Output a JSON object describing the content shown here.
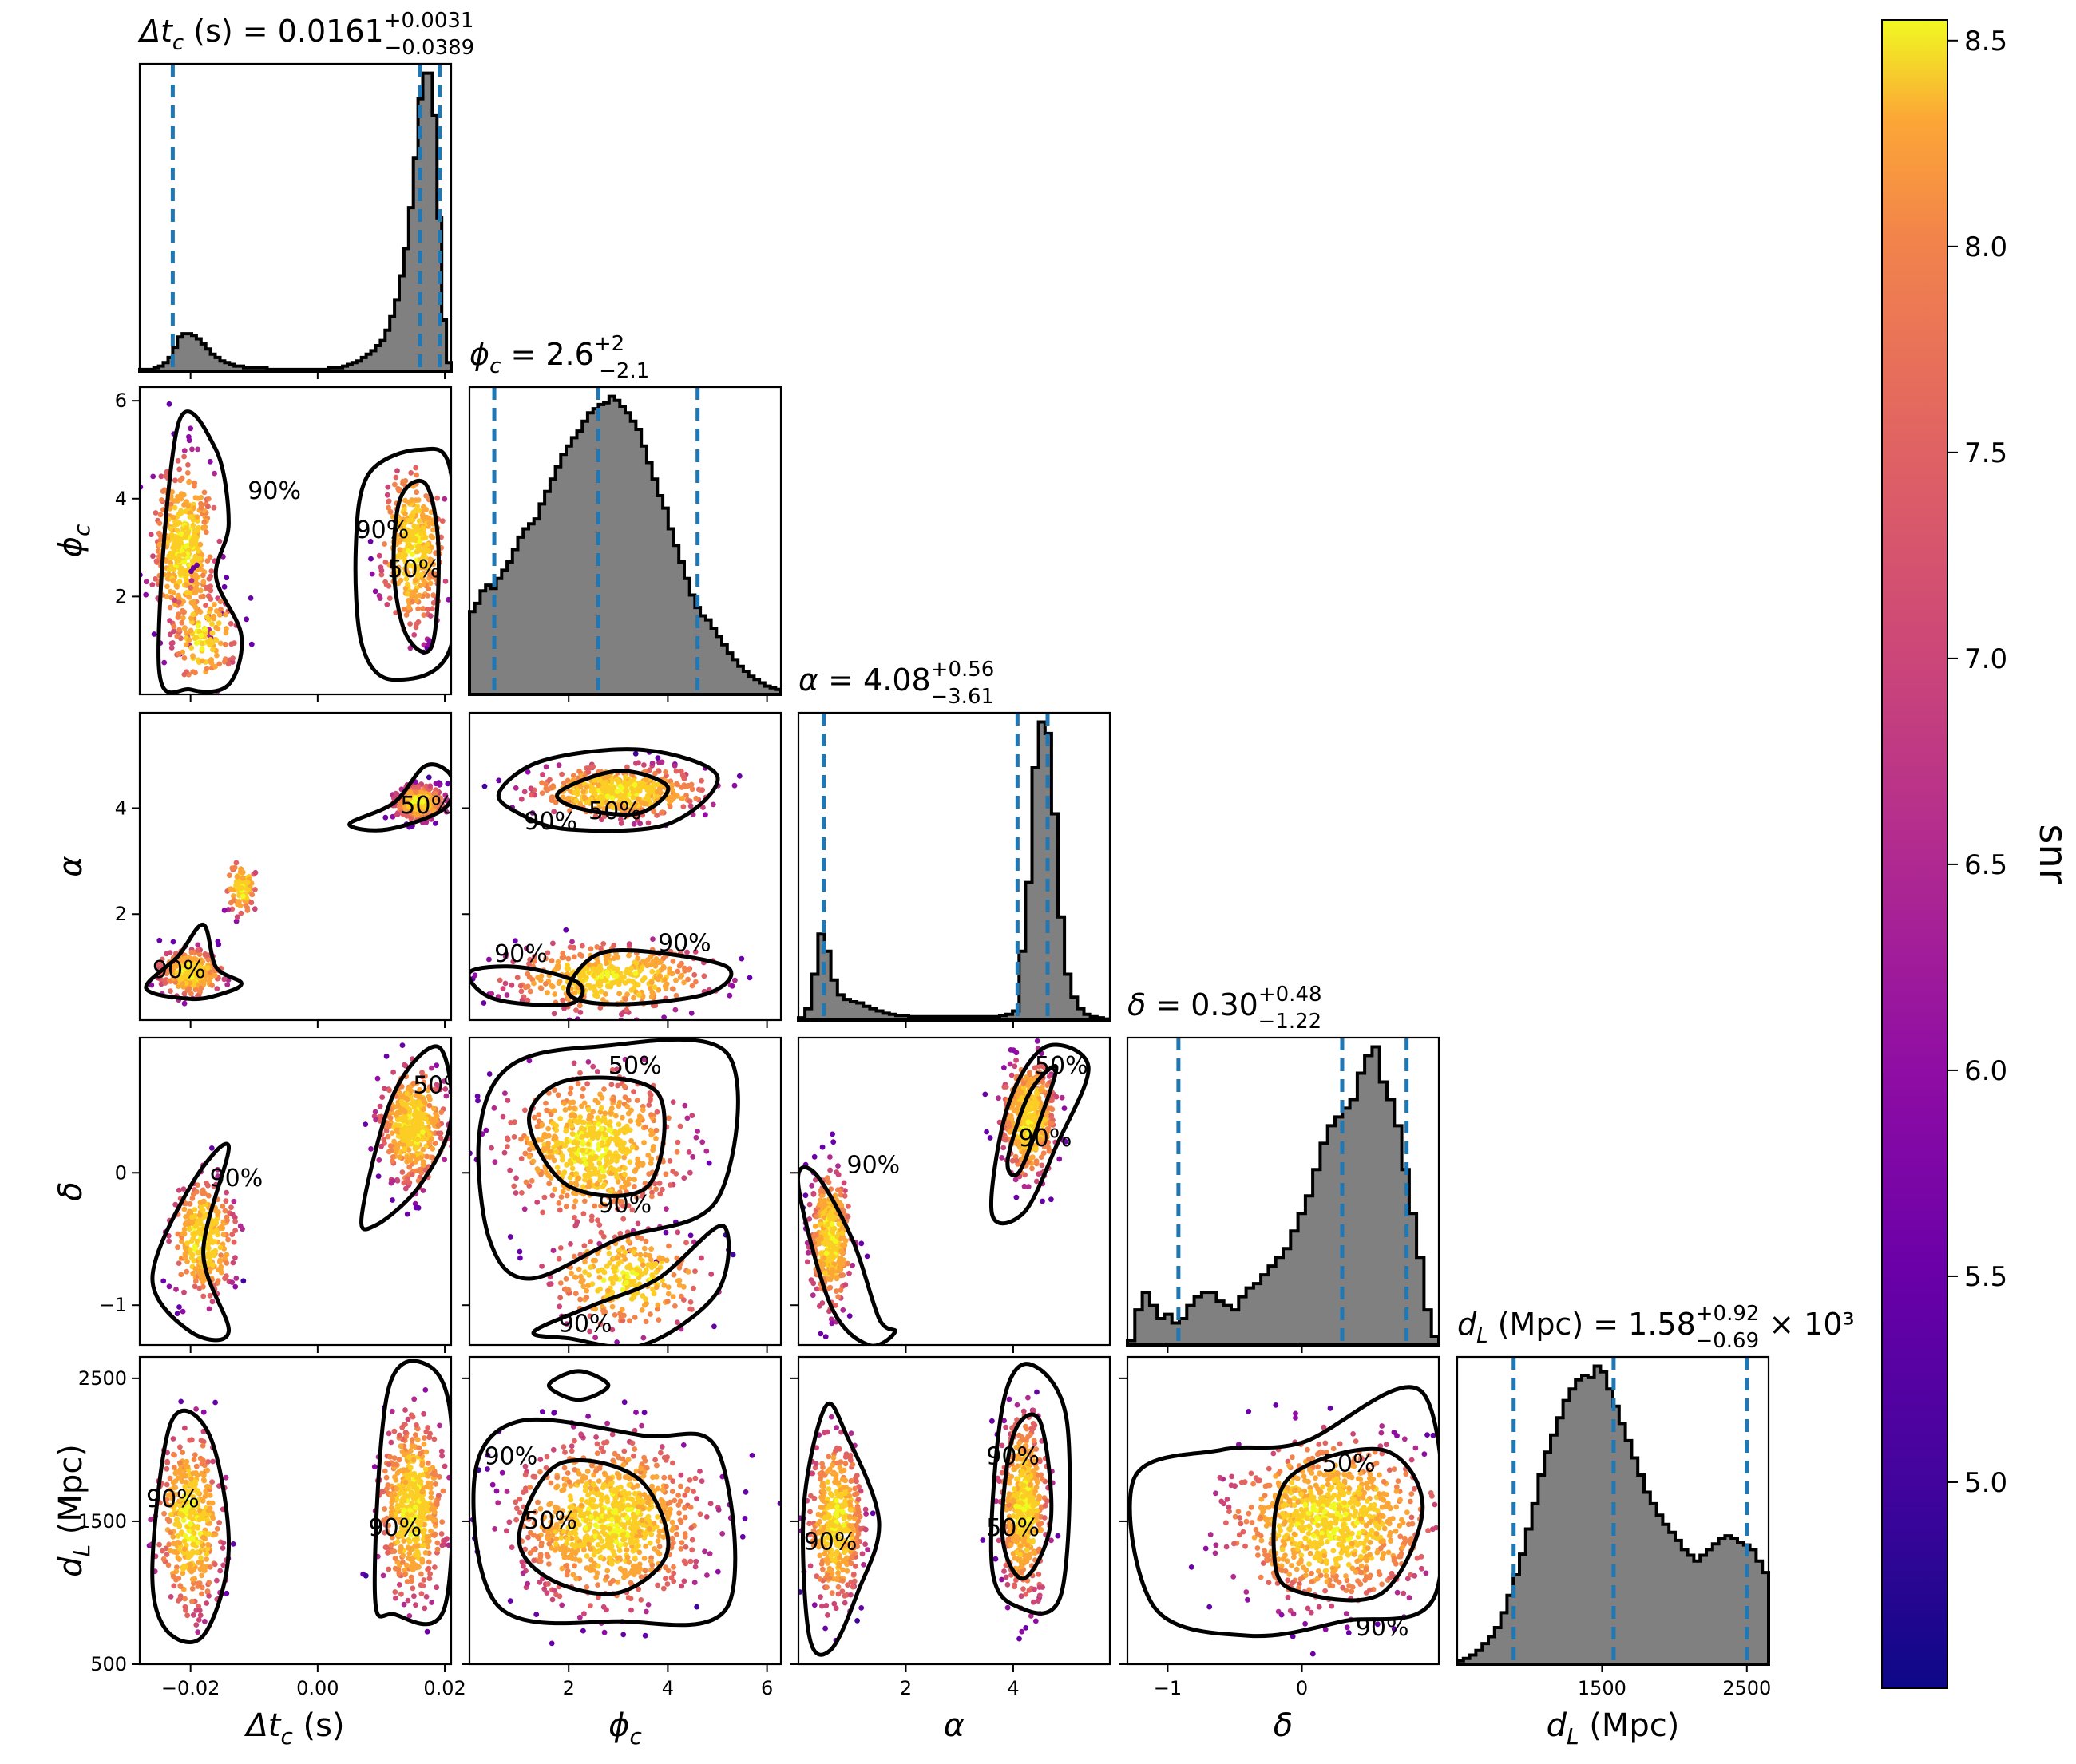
{
  "chart_data": {
    "type": "corner",
    "colorbar": {
      "label": "snr",
      "range": [
        4.5,
        8.55
      ],
      "ticks": [
        "5.0",
        "5.5",
        "6.0",
        "6.5",
        "7.0",
        "7.5",
        "8.0",
        "8.5"
      ],
      "colormap": "plasma"
    },
    "parameters": [
      {
        "key": "dtc",
        "range": [
          -0.028,
          0.021
        ],
        "ticks": [
          -0.02,
          0.0,
          0.02
        ],
        "tick_labels": [
          "−0.02",
          "0.00",
          "0.02"
        ],
        "median": 0.0161,
        "lo": -0.0228,
        "hi": 0.0192,
        "title_main": "Δt",
        "title_sub": "c",
        "title_rest": " (s) = 0.0161",
        "title_up": "+0.0031",
        "title_dn": "−0.0389",
        "label_main": "Δt",
        "label_sub": "c",
        "label_rest": " (s)",
        "hist": [
          1,
          1,
          1,
          2,
          3,
          5,
          8,
          14,
          20,
          22,
          22,
          21,
          19,
          16,
          13,
          10,
          8,
          6,
          5,
          4,
          3,
          3,
          2,
          2,
          2,
          2,
          2,
          1,
          1,
          1,
          1,
          1,
          1,
          1,
          1,
          1,
          1,
          1,
          1,
          1,
          2,
          2,
          2,
          3,
          4,
          5,
          6,
          8,
          10,
          12,
          15,
          18,
          24,
          32,
          42,
          56,
          72,
          96,
          125,
          160,
          175,
          175,
          150,
          90,
          30,
          5
        ]
      },
      {
        "key": "phi",
        "range": [
          0.0,
          6.28
        ],
        "ticks": [
          2,
          4,
          6
        ],
        "tick_labels": [
          "2",
          "4",
          "6"
        ],
        "median": 2.6,
        "lo": 0.5,
        "hi": 4.6,
        "title_main": "ϕ",
        "title_sub": "c",
        "title_rest": " = 2.6",
        "title_up": "+2",
        "title_dn": "−2.1",
        "label_main": "ϕ",
        "label_sub": "c",
        "label_rest": "",
        "hist": [
          100,
          110,
          125,
          132,
          128,
          140,
          150,
          160,
          175,
          190,
          200,
          206,
          212,
          230,
          245,
          260,
          275,
          290,
          300,
          310,
          318,
          330,
          340,
          345,
          350,
          352,
          360,
          355,
          348,
          340,
          330,
          320,
          300,
          280,
          260,
          240,
          225,
          200,
          180,
          160,
          140,
          120,
          105,
          95,
          90,
          80,
          70,
          60,
          50,
          42,
          34,
          28,
          22,
          18,
          14,
          10,
          8,
          6
        ]
      },
      {
        "key": "alpha",
        "range": [
          0.0,
          5.8
        ],
        "ticks": [
          2,
          4
        ],
        "tick_labels": [
          "2",
          "4"
        ],
        "median": 4.08,
        "lo": 0.47,
        "hi": 4.64,
        "title_main": "α",
        "title_sub": "",
        "title_rest": " = 4.08",
        "title_up": "+0.56",
        "title_dn": "−3.61",
        "label_main": "α",
        "label_sub": "",
        "label_rest": "",
        "hist": [
          2,
          10,
          40,
          75,
          60,
          35,
          22,
          18,
          16,
          15,
          12,
          10,
          8,
          6,
          5,
          4,
          4,
          3,
          3,
          3,
          3,
          3,
          3,
          3,
          3,
          3,
          3,
          3,
          3,
          3,
          3,
          4,
          5,
          8,
          60,
          120,
          220,
          260,
          250,
          180,
          90,
          40,
          20,
          10,
          5,
          3,
          2,
          1
        ]
      },
      {
        "key": "delta",
        "range": [
          -1.3,
          1.02
        ],
        "ticks": [
          -1,
          0
        ],
        "tick_labels": [
          "−1",
          "0"
        ],
        "median": 0.3,
        "lo": -0.92,
        "hi": 0.78,
        "title_main": "δ",
        "title_sub": "",
        "title_rest": " = 0.30",
        "title_up": "+0.48",
        "title_dn": "−1.22",
        "label_main": "δ",
        "label_sub": "",
        "label_rest": "",
        "hist": [
          5,
          40,
          60,
          45,
          30,
          35,
          25,
          30,
          45,
          55,
          60,
          60,
          50,
          45,
          40,
          55,
          65,
          70,
          80,
          90,
          100,
          110,
          130,
          150,
          170,
          200,
          230,
          250,
          260,
          270,
          280,
          310,
          330,
          340,
          300,
          280,
          250,
          200,
          150,
          100,
          40,
          10
        ]
      },
      {
        "key": "dL",
        "range": [
          500,
          2650
        ],
        "ticks": [
          1500,
          2500
        ],
        "tick_labels": [
          "1500",
          "2500"
        ],
        "tick_labels_y": [
          "500",
          "1500",
          "2500"
        ],
        "ticks_y": [
          500,
          1500,
          2500
        ],
        "median": 1580,
        "lo": 890,
        "hi": 2500,
        "title_main": "d",
        "title_sub": "L",
        "title_rest": " (Mpc) = 1.58",
        "title_up": "+0.92",
        "title_dn": "−0.69",
        "title_tail": " × 10³",
        "label_main": "d",
        "label_sub": "L",
        "label_rest": " (Mpc)",
        "hist": [
          3,
          5,
          8,
          12,
          18,
          24,
          32,
          45,
          60,
          78,
          96,
          118,
          140,
          165,
          185,
          200,
          215,
          230,
          240,
          248,
          252,
          250,
          260,
          255,
          240,
          225,
          210,
          195,
          180,
          165,
          150,
          140,
          130,
          122,
          115,
          108,
          100,
          95,
          90,
          95,
          100,
          105,
          110,
          112,
          110,
          106,
          104,
          100,
          90,
          80
        ]
      }
    ],
    "contour_label_50": "50%",
    "contour_label_90": "90%"
  }
}
